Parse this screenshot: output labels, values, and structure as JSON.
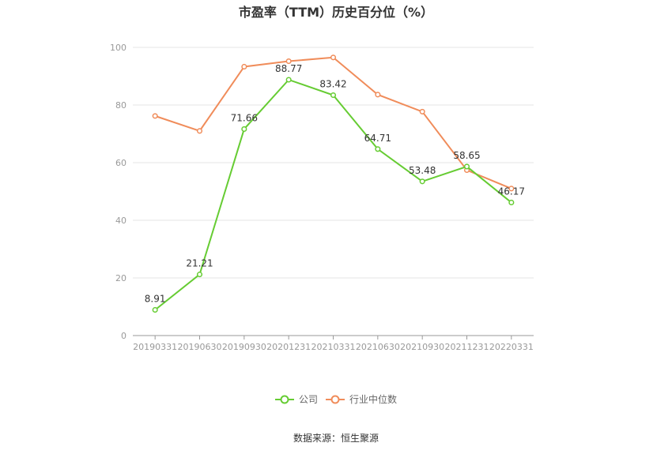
{
  "chart_data": {
    "type": "line",
    "title": "市盈率（TTM）历史百分位（%）",
    "categories": [
      "20190331",
      "20190630",
      "20190930",
      "20201231",
      "20210331",
      "20210630",
      "20210930",
      "20211231",
      "20220331"
    ],
    "ylim": [
      0,
      100
    ],
    "yticks": [
      0,
      20,
      40,
      60,
      80,
      100
    ],
    "grid": true,
    "legend_position": "bottom-center",
    "series": [
      {
        "name": "公司",
        "color": "#66cc33",
        "values": [
          8.91,
          21.21,
          71.66,
          88.77,
          83.42,
          64.71,
          53.48,
          58.65,
          46.17
        ],
        "labels": [
          "8.91",
          "21.21",
          "71.66",
          "88.77",
          "83.42",
          "64.71",
          "53.48",
          "58.65",
          "46.17"
        ]
      },
      {
        "name": "行业中位数",
        "color": "#f08c5a",
        "values": [
          76.2,
          71.0,
          93.3,
          95.2,
          96.5,
          83.6,
          77.7,
          57.4,
          51.0
        ]
      }
    ]
  },
  "footer": {
    "source": "数据来源：恒生聚源"
  }
}
